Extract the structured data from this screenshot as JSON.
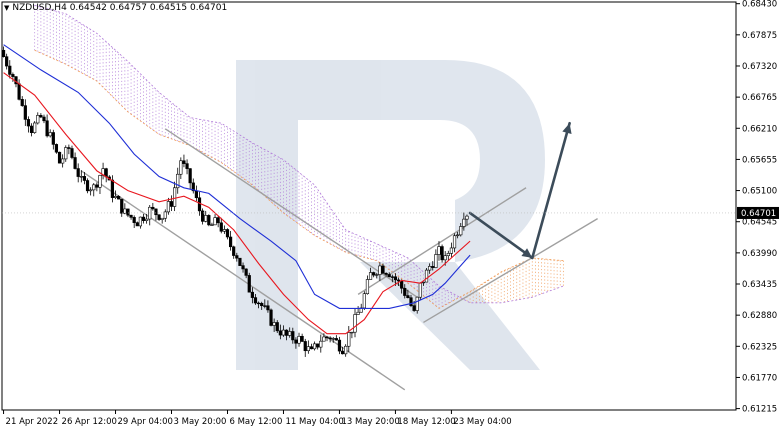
{
  "header": {
    "menu_icon": "triangle-down-icon",
    "symbol": "NZDUSD,H4",
    "open": "0.64542",
    "high": "0.64757",
    "low": "0.64515",
    "close": "0.64701"
  },
  "chart_data": {
    "type": "candlestick",
    "symbol": "NZDUSD",
    "timeframe": "H4",
    "ylim": [
      0.6119,
      0.6846
    ],
    "y_ticks": [
      0.6843,
      0.67875,
      0.6732,
      0.66765,
      0.6621,
      0.65655,
      0.651,
      0.64545,
      0.6399,
      0.63435,
      0.6288,
      0.62325,
      0.6177,
      0.61215
    ],
    "y_tick_labels": [
      "0.68430",
      "0.67875",
      "0.67320",
      "0.66765",
      "0.66210",
      "0.65655",
      "0.65100",
      "0.64545",
      "0.63990",
      "0.63435",
      "0.62880",
      "0.62325",
      "0.61770",
      "0.61215"
    ],
    "current_price": 0.64701,
    "current_price_label": "0.64701",
    "x_tick_labels": [
      {
        "bar": 0,
        "label": "21 Apr 2022"
      },
      {
        "bar": 18,
        "label": "26 Apr 12:00"
      },
      {
        "bar": 36,
        "label": "29 Apr 04:00"
      },
      {
        "bar": 54,
        "label": "3 May 20:00"
      },
      {
        "bar": 72,
        "label": "6 May 12:00"
      },
      {
        "bar": 90,
        "label": "11 May 04:00"
      },
      {
        "bar": 108,
        "label": "13 May 20:00"
      },
      {
        "bar": 126,
        "label": "18 May 12:00"
      },
      {
        "bar": 144,
        "label": "23 May 04:00"
      }
    ],
    "bars_total": 150,
    "bars_visible_area": 236,
    "price_path": [
      [
        0,
        0.676
      ],
      [
        4,
        0.6715
      ],
      [
        7,
        0.666
      ],
      [
        10,
        0.662
      ],
      [
        13,
        0.664
      ],
      [
        16,
        0.6605
      ],
      [
        19,
        0.656
      ],
      [
        22,
        0.6585
      ],
      [
        26,
        0.6525
      ],
      [
        30,
        0.6515
      ],
      [
        33,
        0.655
      ],
      [
        36,
        0.6505
      ],
      [
        40,
        0.647
      ],
      [
        44,
        0.6455
      ],
      [
        48,
        0.6475
      ],
      [
        52,
        0.6465
      ],
      [
        55,
        0.649
      ],
      [
        58,
        0.6565
      ],
      [
        61,
        0.6525
      ],
      [
        64,
        0.6475
      ],
      [
        67,
        0.6445
      ],
      [
        70,
        0.6455
      ],
      [
        73,
        0.642
      ],
      [
        76,
        0.6395
      ],
      [
        80,
        0.6335
      ],
      [
        84,
        0.6305
      ],
      [
        88,
        0.627
      ],
      [
        92,
        0.625
      ],
      [
        96,
        0.6245
      ],
      [
        100,
        0.622
      ],
      [
        103,
        0.6245
      ],
      [
        106,
        0.625
      ],
      [
        110,
        0.623
      ],
      [
        113,
        0.6265
      ],
      [
        116,
        0.6305
      ],
      [
        119,
        0.636
      ],
      [
        122,
        0.6375
      ],
      [
        125,
        0.6365
      ],
      [
        128,
        0.6345
      ],
      [
        131,
        0.632
      ],
      [
        133,
        0.629
      ],
      [
        135,
        0.634
      ],
      [
        138,
        0.6375
      ],
      [
        141,
        0.64
      ],
      [
        143,
        0.6385
      ],
      [
        145,
        0.6415
      ],
      [
        147,
        0.644
      ],
      [
        149,
        0.647
      ]
    ],
    "series": [
      {
        "name": "",
        "color": "#e8171f",
        "role": "tenkan",
        "points": [
          [
            0,
            0.672
          ],
          [
            10,
            0.668
          ],
          [
            20,
            0.661
          ],
          [
            30,
            0.6545
          ],
          [
            40,
            0.651
          ],
          [
            50,
            0.649
          ],
          [
            58,
            0.65
          ],
          [
            66,
            0.648
          ],
          [
            74,
            0.644
          ],
          [
            82,
            0.638
          ],
          [
            90,
            0.6325
          ],
          [
            98,
            0.628
          ],
          [
            104,
            0.6255
          ],
          [
            110,
            0.6255
          ],
          [
            116,
            0.628
          ],
          [
            122,
            0.633
          ],
          [
            128,
            0.635
          ],
          [
            134,
            0.6345
          ],
          [
            140,
            0.637
          ],
          [
            146,
            0.64
          ],
          [
            150,
            0.642
          ]
        ]
      },
      {
        "name": "",
        "color": "#1f2fd6",
        "role": "kijun",
        "points": [
          [
            0,
            0.677
          ],
          [
            12,
            0.6725
          ],
          [
            24,
            0.6685
          ],
          [
            34,
            0.663
          ],
          [
            42,
            0.6575
          ],
          [
            50,
            0.6535
          ],
          [
            58,
            0.6515
          ],
          [
            66,
            0.6505
          ],
          [
            76,
            0.646
          ],
          [
            86,
            0.642
          ],
          [
            94,
            0.6385
          ],
          [
            100,
            0.6325
          ],
          [
            108,
            0.63
          ],
          [
            116,
            0.63
          ],
          [
            124,
            0.63
          ],
          [
            132,
            0.631
          ],
          [
            138,
            0.6325
          ],
          [
            142,
            0.6345
          ],
          [
            146,
            0.637
          ],
          [
            150,
            0.6395
          ]
        ]
      }
    ],
    "cloud": {
      "span_a": [
        [
          10,
          0.676
        ],
        [
          20,
          0.6735
        ],
        [
          30,
          0.6705
        ],
        [
          40,
          0.665
        ],
        [
          50,
          0.661
        ],
        [
          60,
          0.659
        ],
        [
          70,
          0.656
        ],
        [
          80,
          0.652
        ],
        [
          90,
          0.647
        ],
        [
          100,
          0.643
        ],
        [
          110,
          0.64
        ],
        [
          120,
          0.6385
        ],
        [
          130,
          0.6345
        ],
        [
          140,
          0.63
        ],
        [
          150,
          0.633
        ],
        [
          160,
          0.6365
        ],
        [
          170,
          0.639
        ],
        [
          180,
          0.6385
        ]
      ],
      "span_b": [
        [
          10,
          0.684
        ],
        [
          20,
          0.6825
        ],
        [
          30,
          0.679
        ],
        [
          40,
          0.674
        ],
        [
          50,
          0.6685
        ],
        [
          60,
          0.664
        ],
        [
          70,
          0.663
        ],
        [
          80,
          0.6595
        ],
        [
          90,
          0.6565
        ],
        [
          100,
          0.652
        ],
        [
          110,
          0.644
        ],
        [
          120,
          0.6415
        ],
        [
          130,
          0.639
        ],
        [
          140,
          0.634
        ],
        [
          150,
          0.631
        ],
        [
          160,
          0.631
        ],
        [
          170,
          0.632
        ],
        [
          180,
          0.634
        ]
      ],
      "bear_color": "#b07ad8",
      "bull_color": "#f09a55"
    },
    "trend_lines": [
      {
        "from": [
          25,
          0.6545
        ],
        "to": [
          129,
          0.6155
        ],
        "color": "#a0a0a0"
      },
      {
        "from": [
          52,
          0.662
        ],
        "to": [
          133,
          0.632
        ],
        "color": "#a0a0a0"
      },
      {
        "from": [
          114,
          0.6325
        ],
        "to": [
          168,
          0.6515
        ],
        "color": "#a0a0a0"
      },
      {
        "from": [
          135,
          0.6275
        ],
        "to": [
          191,
          0.646
        ],
        "color": "#a0a0a0"
      }
    ],
    "forecast_path": {
      "color": "#3c4c5a",
      "points": [
        [
          150,
          0.647
        ],
        [
          170,
          0.639
        ],
        [
          182,
          0.663
        ]
      ]
    },
    "watermark": "R"
  }
}
